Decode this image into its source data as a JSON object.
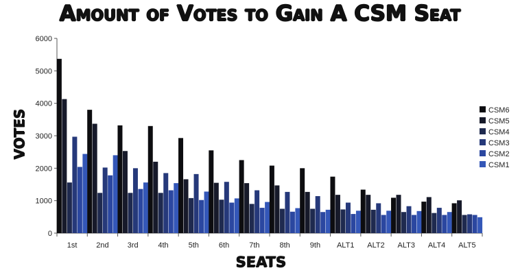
{
  "chart_data": {
    "type": "bar",
    "title": "Amount of Votes to Gain A CSM Seat",
    "xlabel": "SEATS",
    "ylabel": "VOTES",
    "ylim": [
      0,
      6000
    ],
    "yticks": [
      0,
      1000,
      2000,
      3000,
      4000,
      5000,
      6000
    ],
    "grid": false,
    "legend_position": "right",
    "categories": [
      "1st",
      "2nd",
      "3rd",
      "4th",
      "5th",
      "6th",
      "7th",
      "8th",
      "9th",
      "ALT1",
      "ALT2",
      "ALT3",
      "ALT4",
      "ALT5"
    ],
    "series": [
      {
        "name": "CSM6",
        "color": "#0d0d10",
        "values": [
          5370,
          3800,
          3320,
          3300,
          2930,
          2550,
          2250,
          2080,
          2000,
          1740,
          1340,
          1090,
          970,
          920
        ]
      },
      {
        "name": "CSM5",
        "color": "#171a2a",
        "values": [
          4130,
          3370,
          2530,
          2200,
          1660,
          1550,
          1540,
          1470,
          1270,
          1180,
          1180,
          1180,
          1110,
          1010
        ]
      },
      {
        "name": "CSM4",
        "color": "#1f2a4f",
        "values": [
          1560,
          1240,
          1240,
          1240,
          1080,
          1030,
          900,
          750,
          750,
          730,
          720,
          650,
          620,
          560
        ]
      },
      {
        "name": "CSM3",
        "color": "#26397a",
        "values": [
          2970,
          2020,
          2000,
          1850,
          1820,
          1580,
          1320,
          1270,
          1140,
          940,
          920,
          830,
          780,
          580
        ]
      },
      {
        "name": "CSM2",
        "color": "#2b47a0",
        "values": [
          2040,
          1780,
          1360,
          1320,
          1020,
          940,
          780,
          660,
          650,
          590,
          560,
          560,
          560,
          560
        ]
      },
      {
        "name": "CSM1",
        "color": "#3457b8",
        "values": [
          2440,
          2400,
          1560,
          1540,
          1280,
          1070,
          960,
          770,
          720,
          690,
          690,
          680,
          650,
          490
        ]
      }
    ]
  }
}
